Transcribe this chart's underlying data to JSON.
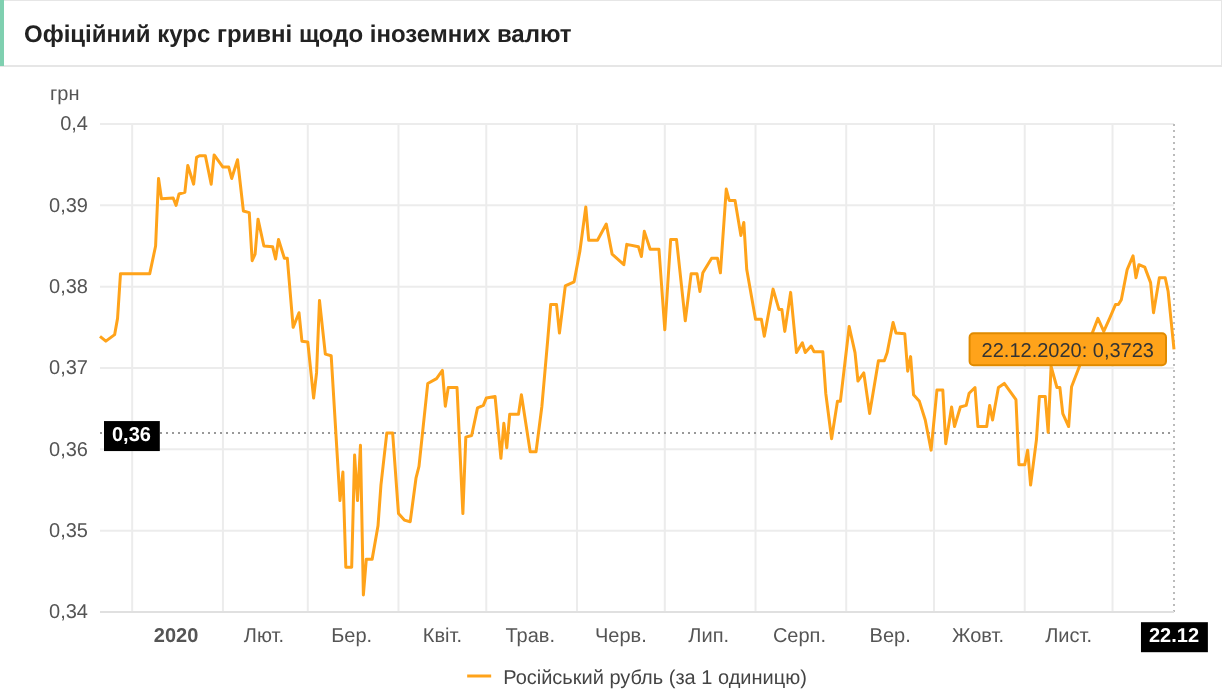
{
  "chart_data": {
    "type": "line",
    "title": "Офіційний курс гривні щодо іноземних валют",
    "ylabel": "грн",
    "xlim": [
      "2019-12-21",
      "2020-12-22"
    ],
    "xticks": [
      {
        "value": "2020-01-01",
        "label": null
      },
      {
        "value": "2020-01-16",
        "label": "2020"
      },
      {
        "value": "2020-02-01",
        "label": null
      },
      {
        "value": "2020-02-15",
        "label": "Лют."
      },
      {
        "value": "2020-03-01",
        "label": null
      },
      {
        "value": "2020-03-16",
        "label": "Бер."
      },
      {
        "value": "2020-04-01",
        "label": null
      },
      {
        "value": "2020-04-16",
        "label": "Квіт."
      },
      {
        "value": "2020-05-01",
        "label": null
      },
      {
        "value": "2020-05-16",
        "label": "Трав."
      },
      {
        "value": "2020-06-01",
        "label": null
      },
      {
        "value": "2020-06-16",
        "label": "Черв."
      },
      {
        "value": "2020-07-01",
        "label": null
      },
      {
        "value": "2020-07-16",
        "label": "Лип."
      },
      {
        "value": "2020-08-01",
        "label": null
      },
      {
        "value": "2020-08-16",
        "label": "Серп."
      },
      {
        "value": "2020-09-01",
        "label": null
      },
      {
        "value": "2020-09-16",
        "label": "Вер."
      },
      {
        "value": "2020-10-01",
        "label": null
      },
      {
        "value": "2020-10-16",
        "label": "Жовт."
      },
      {
        "value": "2020-11-01",
        "label": null
      },
      {
        "value": "2020-11-16",
        "label": "Лист."
      },
      {
        "value": "2020-12-01",
        "label": null
      },
      {
        "value": "2020-12-22",
        "label": "22.12"
      }
    ],
    "ylim": [
      0.34,
      0.4
    ],
    "yticks": [
      {
        "value": 0.34,
        "label": "0,34"
      },
      {
        "value": 0.35,
        "label": "0,35"
      },
      {
        "value": 0.36,
        "label": "0,36"
      },
      {
        "value": 0.37,
        "label": "0,37"
      },
      {
        "value": 0.38,
        "label": "0,38"
      },
      {
        "value": 0.39,
        "label": "0,39"
      },
      {
        "value": 0.4,
        "label": "0,4"
      }
    ],
    "grid": true,
    "legend": "bottom",
    "marker": "none",
    "line_style": "solid",
    "ref_lines": [
      {
        "axis": "y",
        "value": 0.362,
        "label": "0,36",
        "line_style": "dotted",
        "color": "#999999"
      }
    ],
    "annotations": [
      {
        "text": "22.12.2020: 0,3723",
        "x": "2020-12-22",
        "y": 0.3723
      }
    ],
    "series": [
      {
        "name": "Російський рубль (за 1 одиницю)",
        "color": "#ffa31a",
        "x": [
          "2019-12-21",
          "2019-12-23",
          "2019-12-26",
          "2019-12-27",
          "2019-12-28",
          "2020-01-07",
          "2020-01-09",
          "2020-01-10",
          "2020-01-11",
          "2020-01-15",
          "2020-01-16",
          "2020-01-17",
          "2020-01-19",
          "2020-01-20",
          "2020-01-22",
          "2020-01-23",
          "2020-01-24",
          "2020-01-26",
          "2020-01-28",
          "2020-01-29",
          "2020-02-01",
          "2020-02-03",
          "2020-02-04",
          "2020-02-06",
          "2020-02-08",
          "2020-02-10",
          "2020-02-11",
          "2020-02-12",
          "2020-02-13",
          "2020-02-15",
          "2020-02-18",
          "2020-02-19",
          "2020-02-20",
          "2020-02-22",
          "2020-02-23",
          "2020-02-25",
          "2020-02-27",
          "2020-02-28",
          "2020-03-01",
          "2020-03-03",
          "2020-03-04",
          "2020-03-05",
          "2020-03-07",
          "2020-03-09",
          "2020-03-12",
          "2020-03-13",
          "2020-03-14",
          "2020-03-16",
          "2020-03-17",
          "2020-03-18",
          "2020-03-19",
          "2020-03-20",
          "2020-03-21",
          "2020-03-23",
          "2020-03-25",
          "2020-03-26",
          "2020-03-28",
          "2020-03-30",
          "2020-04-01",
          "2020-04-03",
          "2020-04-05",
          "2020-04-07",
          "2020-04-08",
          "2020-04-11",
          "2020-04-14",
          "2020-04-16",
          "2020-04-17",
          "2020-04-18",
          "2020-04-21",
          "2020-04-23",
          "2020-04-24",
          "2020-04-26",
          "2020-04-28",
          "2020-04-30",
          "2020-05-01",
          "2020-05-04",
          "2020-05-06",
          "2020-05-07",
          "2020-05-08",
          "2020-05-09",
          "2020-05-12",
          "2020-05-13",
          "2020-05-16",
          "2020-05-18",
          "2020-05-20",
          "2020-05-22",
          "2020-05-23",
          "2020-05-25",
          "2020-05-26",
          "2020-05-28",
          "2020-05-31",
          "2020-06-02",
          "2020-06-04",
          "2020-06-05",
          "2020-06-08",
          "2020-06-11",
          "2020-06-13",
          "2020-06-17",
          "2020-06-18",
          "2020-06-22",
          "2020-06-23",
          "2020-06-24",
          "2020-06-26",
          "2020-06-29",
          "2020-07-01",
          "2020-07-03",
          "2020-07-05",
          "2020-07-08",
          "2020-07-10",
          "2020-07-12",
          "2020-07-13",
          "2020-07-14",
          "2020-07-17",
          "2020-07-19",
          "2020-07-20",
          "2020-07-22",
          "2020-07-23",
          "2020-07-25",
          "2020-07-27",
          "2020-07-28",
          "2020-07-29",
          "2020-08-01",
          "2020-08-03",
          "2020-08-04",
          "2020-08-07",
          "2020-08-09",
          "2020-08-10",
          "2020-08-11",
          "2020-08-13",
          "2020-08-15",
          "2020-08-17",
          "2020-08-18",
          "2020-08-20",
          "2020-08-21",
          "2020-08-24",
          "2020-08-25",
          "2020-08-27",
          "2020-08-29",
          "2020-08-30",
          "2020-09-02",
          "2020-09-04",
          "2020-09-05",
          "2020-09-07",
          "2020-09-09",
          "2020-09-12",
          "2020-09-14",
          "2020-09-15",
          "2020-09-17",
          "2020-09-18",
          "2020-09-21",
          "2020-09-22",
          "2020-09-23",
          "2020-09-24",
          "2020-09-26",
          "2020-09-28",
          "2020-09-30",
          "2020-10-02",
          "2020-10-04",
          "2020-10-05",
          "2020-10-07",
          "2020-10-08",
          "2020-10-10",
          "2020-10-12",
          "2020-10-13",
          "2020-10-15",
          "2020-10-16",
          "2020-10-19",
          "2020-10-20",
          "2020-10-21",
          "2020-10-23",
          "2020-10-25",
          "2020-10-29",
          "2020-10-30",
          "2020-11-01",
          "2020-11-02",
          "2020-11-03",
          "2020-11-05",
          "2020-11-06",
          "2020-11-08",
          "2020-11-09",
          "2020-11-10",
          "2020-11-12",
          "2020-11-13",
          "2020-11-14",
          "2020-11-16",
          "2020-11-17",
          "2020-11-26",
          "2020-11-28",
          "2020-11-30",
          "2020-12-02",
          "2020-12-03",
          "2020-12-04",
          "2020-12-06",
          "2020-12-08",
          "2020-12-09",
          "2020-12-10",
          "2020-12-12",
          "2020-12-14",
          "2020-12-15",
          "2020-12-17",
          "2020-12-19",
          "2020-12-20",
          "2020-12-22"
        ],
        "values": [
          0.3739,
          0.3733,
          0.3741,
          0.3761,
          0.3816,
          0.3816,
          0.385,
          0.3933,
          0.3908,
          0.3909,
          0.39,
          0.3914,
          0.3916,
          0.3949,
          0.3926,
          0.3959,
          0.3961,
          0.3961,
          0.3926,
          0.3962,
          0.3947,
          0.3947,
          0.3933,
          0.3956,
          0.3893,
          0.3891,
          0.3832,
          0.384,
          0.3883,
          0.385,
          0.3849,
          0.3834,
          0.3858,
          0.3835,
          0.3835,
          0.375,
          0.3768,
          0.3733,
          0.3732,
          0.3663,
          0.3694,
          0.3783,
          0.3717,
          0.3715,
          0.3537,
          0.3572,
          0.3455,
          0.3455,
          0.3593,
          0.3537,
          0.3605,
          0.3421,
          0.3465,
          0.3465,
          0.3506,
          0.3556,
          0.362,
          0.362,
          0.3521,
          0.3513,
          0.3511,
          0.3565,
          0.3579,
          0.3681,
          0.3687,
          0.3697,
          0.3653,
          0.3676,
          0.3676,
          0.3521,
          0.3615,
          0.3617,
          0.3651,
          0.3654,
          0.3663,
          0.3665,
          0.3589,
          0.3632,
          0.3602,
          0.3643,
          0.3643,
          0.3667,
          0.3597,
          0.3597,
          0.3653,
          0.3735,
          0.3778,
          0.3778,
          0.3743,
          0.3801,
          0.3806,
          0.3844,
          0.3898,
          0.3857,
          0.3857,
          0.3877,
          0.384,
          0.3827,
          0.3852,
          0.3849,
          0.3837,
          0.3868,
          0.3846,
          0.3846,
          0.3747,
          0.3858,
          0.3858,
          0.3758,
          0.3816,
          0.3816,
          0.3794,
          0.3817,
          0.3835,
          0.3835,
          0.3817,
          0.392,
          0.3906,
          0.3906,
          0.3863,
          0.3879,
          0.3821,
          0.376,
          0.376,
          0.3739,
          0.3797,
          0.3772,
          0.3772,
          0.3745,
          0.3793,
          0.3719,
          0.3731,
          0.3719,
          0.3727,
          0.372,
          0.372,
          0.3669,
          0.3613,
          0.3659,
          0.3659,
          0.3751,
          0.3719,
          0.3684,
          0.3694,
          0.3644,
          0.3709,
          0.3709,
          0.3719,
          0.3756,
          0.3743,
          0.3742,
          0.3696,
          0.3714,
          0.3667,
          0.3659,
          0.3636,
          0.3599,
          0.3673,
          0.3673,
          0.3607,
          0.3652,
          0.3628,
          0.3652,
          0.3654,
          0.3669,
          0.3676,
          0.3628,
          0.3628,
          0.3654,
          0.3636,
          0.3676,
          0.3681,
          0.3661,
          0.3581,
          0.3581,
          0.3599,
          0.3556,
          0.3612,
          0.3665,
          0.3665,
          0.3621,
          0.3702,
          0.3676,
          0.3676,
          0.3644,
          0.3628,
          0.3677,
          0.3761,
          0.3745,
          0.3761,
          0.3778,
          0.3778,
          0.3784,
          0.3821,
          0.3838,
          0.3811,
          0.3827,
          0.3824,
          0.3805,
          0.3768,
          0.3811,
          0.3811,
          0.3794,
          0.3723
        ]
      }
    ]
  }
}
